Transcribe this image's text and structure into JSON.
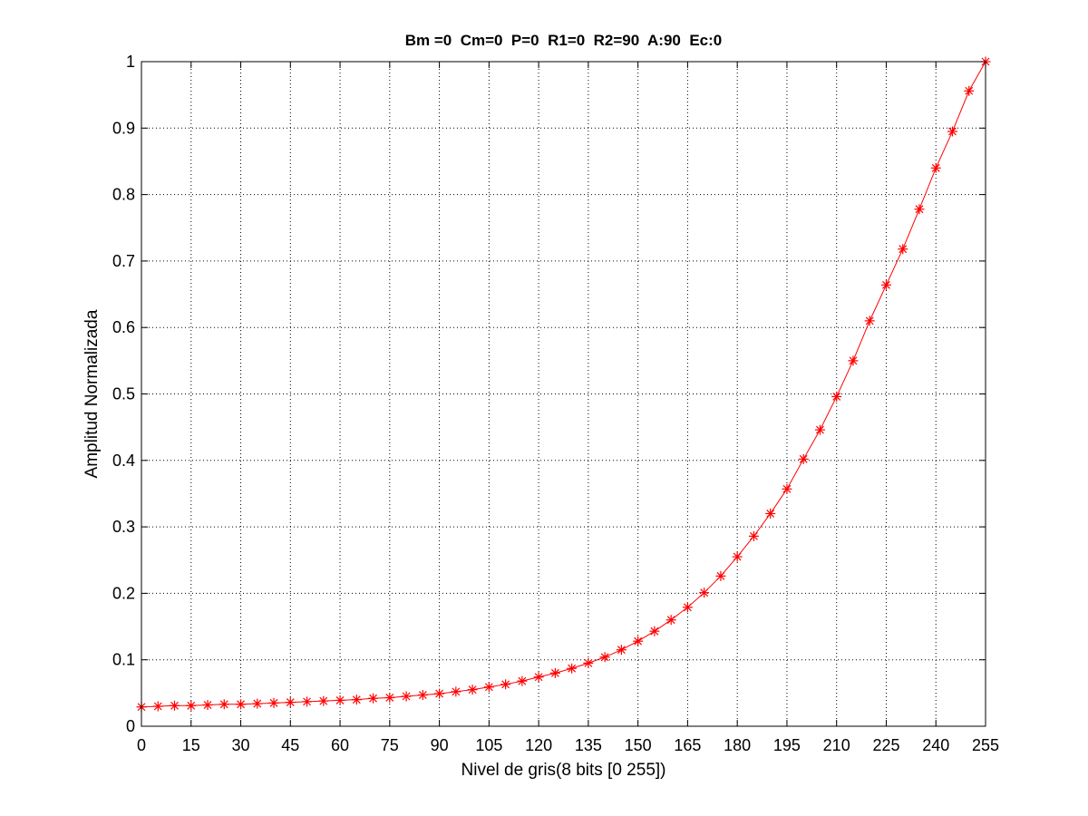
{
  "chart_data": {
    "type": "line",
    "title": "Bm =0  Cm=0  P=0  R1=0  R2=90  A:90  Ec:0",
    "xlabel": "Nivel de gris(8 bits [0 255])",
    "ylabel": "Amplitud Normalizada",
    "xlim": [
      0,
      255
    ],
    "ylim": [
      0,
      1
    ],
    "xticks": [
      0,
      15,
      30,
      45,
      60,
      75,
      90,
      105,
      120,
      135,
      150,
      165,
      180,
      195,
      210,
      225,
      240,
      255
    ],
    "yticks": [
      0,
      0.1,
      0.2,
      0.3,
      0.4,
      0.5,
      0.6,
      0.7,
      0.8,
      0.9,
      1
    ],
    "grid": true,
    "line_color": "#ff0000",
    "marker": "asterisk",
    "series": [
      {
        "x": [
          0,
          5,
          10,
          15,
          20,
          25,
          30,
          35,
          40,
          45,
          50,
          55,
          60,
          65,
          70,
          75,
          80,
          85,
          90,
          95,
          100,
          105,
          110,
          115,
          120,
          125,
          130,
          135,
          140,
          145,
          150,
          155,
          160,
          165,
          170,
          175,
          180,
          185,
          190,
          195,
          200,
          205,
          210,
          215,
          220,
          225,
          230,
          235,
          240,
          245,
          250,
          255
        ],
        "values": [
          0.029,
          0.03,
          0.031,
          0.031,
          0.032,
          0.033,
          0.033,
          0.034,
          0.035,
          0.036,
          0.037,
          0.038,
          0.039,
          0.04,
          0.042,
          0.043,
          0.045,
          0.047,
          0.049,
          0.052,
          0.055,
          0.059,
          0.063,
          0.068,
          0.074,
          0.08,
          0.087,
          0.095,
          0.104,
          0.115,
          0.128,
          0.143,
          0.16,
          0.179,
          0.201,
          0.226,
          0.255,
          0.286,
          0.32,
          0.357,
          0.402,
          0.446,
          0.496,
          0.55,
          0.61,
          0.664,
          0.718,
          0.778,
          0.84,
          0.895,
          0.956,
          1.0
        ]
      }
    ]
  }
}
